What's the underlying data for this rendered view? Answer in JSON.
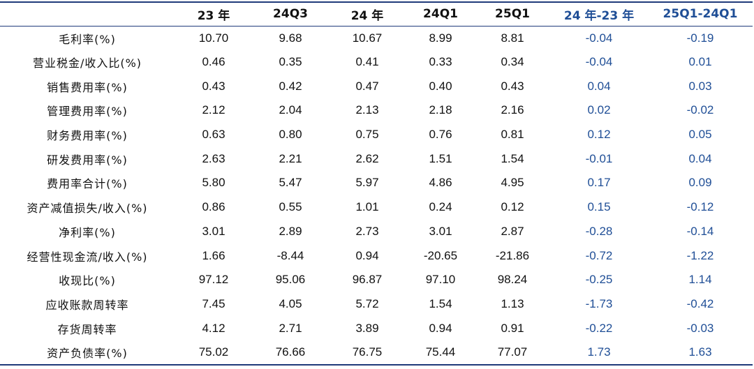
{
  "headers": [
    "",
    "23 年",
    "24Q3",
    "24 年",
    "24Q1",
    "25Q1",
    "24 年-23 年",
    "25Q1-24Q1"
  ],
  "rows": [
    {
      "label": "毛利率(%)",
      "values": [
        "10.70",
        "9.68",
        "10.67",
        "8.99",
        "8.81",
        "-0.04",
        "-0.19"
      ]
    },
    {
      "label": "营业税金/收入比(%)",
      "values": [
        "0.46",
        "0.35",
        "0.41",
        "0.33",
        "0.34",
        "-0.04",
        "0.01"
      ]
    },
    {
      "label": "销售费用率(%)",
      "values": [
        "0.43",
        "0.42",
        "0.47",
        "0.40",
        "0.43",
        "0.04",
        "0.03"
      ]
    },
    {
      "label": "管理费用率(%)",
      "values": [
        "2.12",
        "2.04",
        "2.13",
        "2.18",
        "2.16",
        "0.02",
        "-0.02"
      ]
    },
    {
      "label": "财务费用率(%)",
      "values": [
        "0.63",
        "0.80",
        "0.75",
        "0.76",
        "0.81",
        "0.12",
        "0.05"
      ]
    },
    {
      "label": "研发费用率(%)",
      "values": [
        "2.63",
        "2.21",
        "2.62",
        "1.51",
        "1.54",
        "-0.01",
        "0.04"
      ]
    },
    {
      "label": "费用率合计(%)",
      "values": [
        "5.80",
        "5.47",
        "5.97",
        "4.86",
        "4.95",
        "0.17",
        "0.09"
      ]
    },
    {
      "label": "资产减值损失/收入(%)",
      "values": [
        "0.86",
        "0.55",
        "1.01",
        "0.24",
        "0.12",
        "0.15",
        "-0.12"
      ]
    },
    {
      "label": "净利率(%)",
      "values": [
        "3.01",
        "2.89",
        "2.73",
        "3.01",
        "2.87",
        "-0.28",
        "-0.14"
      ]
    },
    {
      "label": "经营性现金流/收入(%)",
      "values": [
        "1.66",
        "-8.44",
        "0.94",
        "-20.65",
        "-21.86",
        "-0.72",
        "-1.22"
      ]
    },
    {
      "label": "收现比(%)",
      "values": [
        "97.12",
        "95.06",
        "96.87",
        "97.10",
        "98.24",
        "-0.25",
        "1.14"
      ]
    },
    {
      "label": "应收账款周转率",
      "values": [
        "7.45",
        "4.05",
        "5.72",
        "1.54",
        "1.13",
        "-1.73",
        "-0.42"
      ]
    },
    {
      "label": "存货周转率",
      "values": [
        "4.12",
        "2.71",
        "3.89",
        "0.94",
        "0.91",
        "-0.22",
        "-0.03"
      ]
    },
    {
      "label": "资产负债率(%)",
      "values": [
        "75.02",
        "76.66",
        "76.75",
        "75.44",
        "77.07",
        "1.73",
        "1.63"
      ]
    }
  ]
}
